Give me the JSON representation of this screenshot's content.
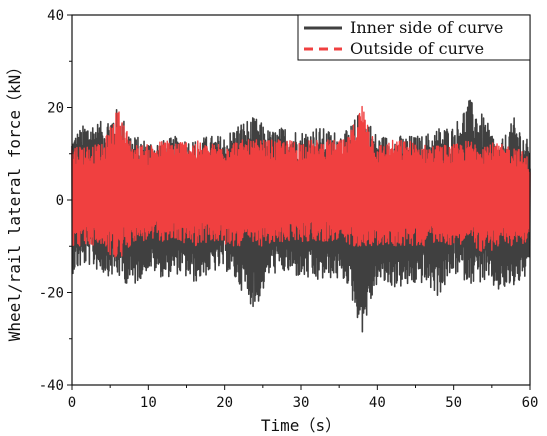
{
  "chart_data": {
    "type": "line",
    "title": "",
    "xlabel": "Time（s）",
    "ylabel": "Wheel/rail lateral force（kN）",
    "xlim": [
      0,
      60
    ],
    "ylim": [
      -40,
      40
    ],
    "x_ticks": [
      "0",
      "10",
      "20",
      "30",
      "40",
      "50",
      "60"
    ],
    "y_ticks": [
      "40",
      "20",
      "0",
      "-20",
      "-40"
    ],
    "legend_position": "top-right",
    "grid": false,
    "series": [
      {
        "name": "Inner side of curve",
        "color": "#404040",
        "line_style": "solid",
        "x": [
          0,
          2,
          4,
          6,
          8,
          10,
          12,
          14,
          16,
          18,
          20,
          22,
          24,
          26,
          28,
          30,
          32,
          34,
          36,
          38,
          40,
          42,
          44,
          46,
          48,
          50,
          52,
          54,
          56,
          58,
          60
        ],
        "upper": [
          14,
          17,
          17,
          20,
          14,
          13,
          13,
          14,
          13,
          14,
          14,
          17,
          18,
          15,
          16,
          15,
          16,
          15,
          15,
          20,
          14,
          14,
          14,
          14,
          16,
          16,
          22,
          18,
          12,
          18,
          12
        ],
        "lower": [
          -16,
          -14,
          -16,
          -17,
          -19,
          -15,
          -17,
          -16,
          -18,
          -16,
          -15,
          -19,
          -24,
          -16,
          -16,
          -17,
          -18,
          -17,
          -18,
          -29,
          -18,
          -19,
          -19,
          -18,
          -21,
          -16,
          -18,
          -18,
          -20,
          -19,
          -16
        ]
      },
      {
        "name": "Outside of curve",
        "color": "#f04040",
        "line_style": "dashed",
        "x": [
          0,
          2,
          4,
          6,
          8,
          10,
          12,
          14,
          16,
          18,
          20,
          22,
          24,
          26,
          28,
          30,
          32,
          34,
          36,
          38,
          40,
          42,
          44,
          46,
          48,
          50,
          52,
          54,
          56,
          58,
          60
        ],
        "upper": [
          12,
          12,
          12,
          20,
          12,
          12,
          13,
          13,
          13,
          12,
          13,
          13,
          13,
          13,
          13,
          13,
          13,
          13,
          13,
          21,
          12,
          13,
          13,
          12,
          12,
          12,
          13,
          13,
          12,
          12,
          9
        ],
        "lower": [
          -10,
          -10,
          -10,
          -14,
          -9,
          -9,
          -9,
          -9,
          -10,
          -9,
          -10,
          -10,
          -10,
          -10,
          -9,
          -9,
          -9,
          -9,
          -10,
          -10,
          -10,
          -10,
          -10,
          -10,
          -9,
          -10,
          -9,
          -12,
          -10,
          -10,
          -9
        ]
      }
    ]
  }
}
